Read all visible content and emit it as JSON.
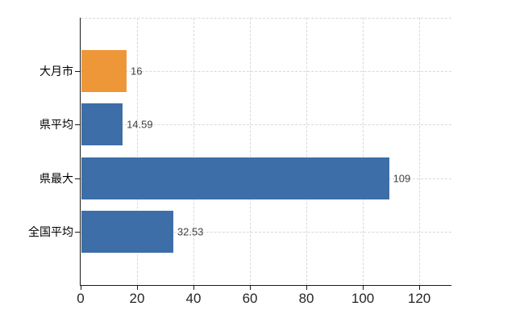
{
  "colors": {
    "background": "#ffffff",
    "bar_default": "#3d6ea8",
    "bar_highlight": "#ee9739",
    "gridline": "#d9d9d9",
    "axis": "#1a1a1a",
    "tick_label": "#262626",
    "value_label": "#3f3f3f",
    "category_label": "#000000"
  },
  "chart_data": {
    "type": "bar",
    "orientation": "horizontal",
    "title": "",
    "xlabel": "",
    "ylabel": "",
    "categories": [
      "大月市",
      "県平均",
      "県最大",
      "全国平均"
    ],
    "values": [
      16,
      14.59,
      109,
      32.53
    ],
    "value_labels": [
      "16",
      "14.59",
      "109",
      "32.53"
    ],
    "bar_colors": [
      "#ee9739",
      "#3d6ea8",
      "#3d6ea8",
      "#3d6ea8"
    ],
    "x_ticks": [
      0,
      20,
      40,
      60,
      80,
      100,
      120
    ],
    "x_tick_labels": [
      "0",
      "20",
      "40",
      "60",
      "80",
      "100",
      "120"
    ],
    "xlim": [
      0,
      131.4
    ],
    "grid": true,
    "grid_style": "dashed",
    "legend": false
  }
}
